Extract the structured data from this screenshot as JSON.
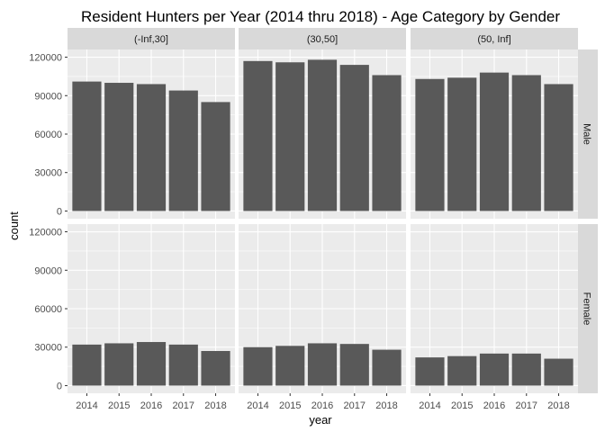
{
  "chart_data": {
    "type": "bar",
    "title": "Resident Hunters per Year (2014 thru 2018) - Age Category by Gender",
    "xlabel": "year",
    "ylabel": "count",
    "ylim": [
      0,
      120000
    ],
    "yticks": [
      "0",
      "30000",
      "60000",
      "90000",
      "120000"
    ],
    "categories": [
      "2014",
      "2015",
      "2016",
      "2017",
      "2018"
    ],
    "columns": [
      "(-Inf,30]",
      "(30,50]",
      "(50, Inf]"
    ],
    "rows": [
      "Male",
      "Female"
    ],
    "bar_color": "#595959",
    "panel_background": "#ebebeb",
    "strip_background": "#d9d9d9",
    "grid": true,
    "panels": [
      {
        "row": "Male",
        "column": "(-Inf,30]",
        "values": [
          101000,
          100000,
          99000,
          94000,
          85000
        ]
      },
      {
        "row": "Male",
        "column": "(30,50]",
        "values": [
          117000,
          116000,
          118000,
          114000,
          106000
        ]
      },
      {
        "row": "Male",
        "column": "(50, Inf]",
        "values": [
          103000,
          104000,
          108000,
          106000,
          99000
        ]
      },
      {
        "row": "Female",
        "column": "(-Inf,30]",
        "values": [
          32000,
          33000,
          34000,
          32000,
          27000
        ]
      },
      {
        "row": "Female",
        "column": "(30,50]",
        "values": [
          30000,
          31000,
          33000,
          32500,
          28000
        ]
      },
      {
        "row": "Female",
        "column": "(50, Inf]",
        "values": [
          22000,
          23000,
          25000,
          25000,
          21000
        ]
      }
    ]
  }
}
